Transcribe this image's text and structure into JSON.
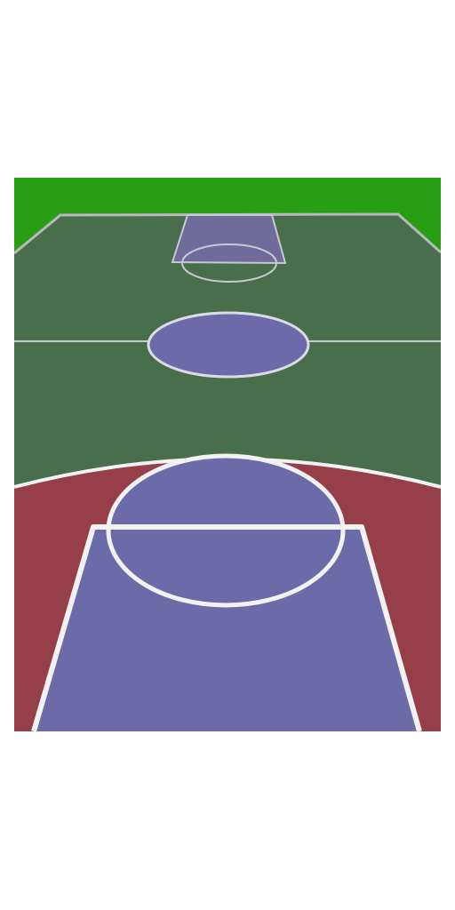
{
  "scene": {
    "type": "basketball-court-perspective",
    "colors": {
      "page_background": "#ffffff",
      "surround_grass": "#289e15",
      "court_floor": "#496e4b",
      "three_point_area": "#963e4a",
      "paint_and_circles": "#6c6ba9",
      "far_paint": "#706b9a",
      "line_white": "#f2f2f2",
      "line_faint": "#c8c8d2"
    }
  }
}
